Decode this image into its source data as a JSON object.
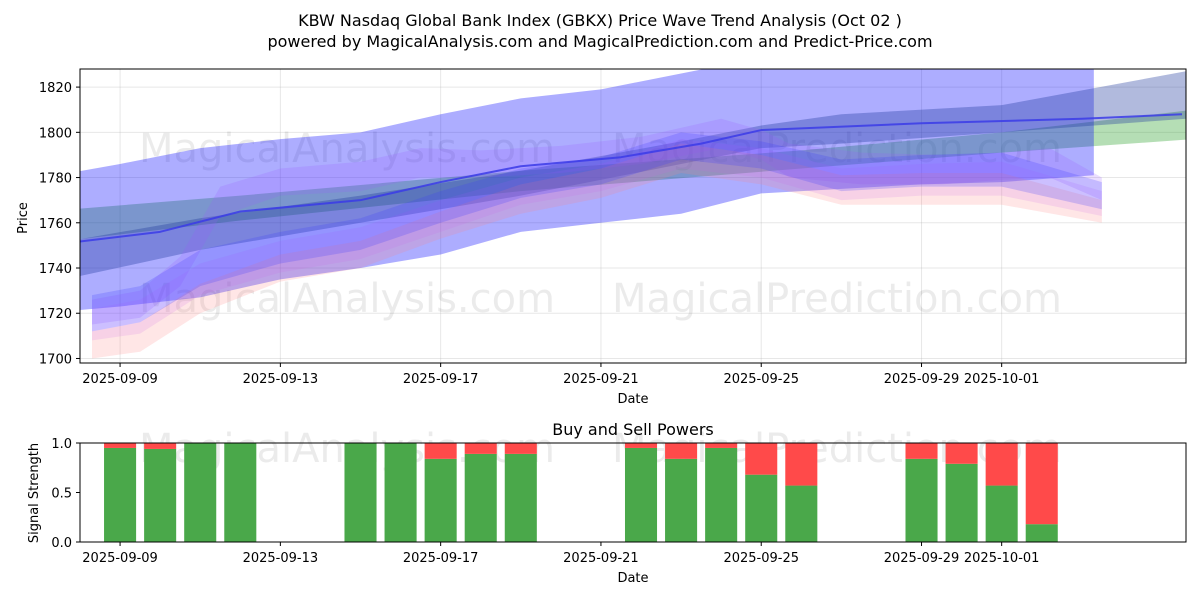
{
  "chart_data": [
    {
      "type": "line",
      "title": "KBW Nasdaq Global Bank Index (GBKX) Price Wave Trend Analysis (Oct 02 )",
      "subtitle": "powered by MagicalAnalysis.com and MagicalPrediction.com and Predict-Price.com",
      "xlabel": "Date",
      "ylabel": "Price",
      "x_day_range": [
        -1.0,
        26.6
      ],
      "ylim": [
        1698,
        1828
      ],
      "x_ticks": [
        {
          "day": 0,
          "label": "2025-09-09"
        },
        {
          "day": 4,
          "label": "2025-09-13"
        },
        {
          "day": 8,
          "label": "2025-09-17"
        },
        {
          "day": 12,
          "label": "2025-09-21"
        },
        {
          "day": 16,
          "label": "2025-09-25"
        },
        {
          "day": 20,
          "label": "2025-09-29"
        },
        {
          "day": 22,
          "label": "2025-10-01"
        }
      ],
      "y_ticks": [
        1700,
        1720,
        1740,
        1760,
        1780,
        1800,
        1820
      ],
      "grid": true,
      "watermarks": [
        "MagicalAnalysis.com",
        "MagicalPrediction.com",
        "MagicalAnalysis.com",
        "MagicalPrediction.com"
      ],
      "series": [
        {
          "name": "green-band",
          "color": "#2ca02c",
          "opacity": 0.35,
          "x": [
            -1.9,
            3,
            10,
            17,
            22,
            26.8
          ],
          "upper": [
            1765,
            1772,
            1783,
            1792,
            1800,
            1810
          ],
          "lower": [
            1751,
            1761,
            1774,
            1784,
            1791,
            1797
          ]
        },
        {
          "name": "wide-band",
          "color": "#0000ff",
          "opacity": 0.32,
          "x": [
            -1.9,
            0,
            2,
            4,
            6,
            8,
            10,
            12,
            14,
            16,
            18,
            20,
            22,
            24.3
          ],
          "upper": [
            1780,
            1786,
            1793,
            1797,
            1800,
            1808,
            1815,
            1819,
            1826,
            1833,
            1835,
            1838,
            1842,
            1846
          ],
          "lower": [
            1720,
            1723,
            1727,
            1735,
            1740,
            1746,
            1756,
            1760,
            1764,
            1773,
            1775,
            1777,
            1778,
            1781
          ]
        },
        {
          "name": "upper-band",
          "color": "#1f3a9f",
          "opacity": 0.35,
          "x": [
            -1.9,
            2,
            6,
            10,
            14,
            16,
            18,
            22,
            26.6
          ],
          "upper": [
            1750,
            1762,
            1772,
            1783,
            1796,
            1803,
            1808,
            1812,
            1827
          ],
          "lower": [
            1733,
            1748,
            1760,
            1772,
            1786,
            1793,
            1795,
            1800,
            1806
          ]
        },
        {
          "name": "purple-wave",
          "color": "#9a5cff",
          "opacity": 0.2,
          "x": [
            -0.7,
            0.5,
            1.5,
            2.5,
            4,
            6,
            7.5,
            9,
            11,
            13,
            15,
            16,
            16.7,
            18.5,
            20.5,
            22,
            23.2,
            24.5
          ],
          "upper": [
            1726,
            1730,
            1745,
            1776,
            1784,
            1787,
            1793,
            1792,
            1794,
            1798,
            1806,
            1801,
            1795,
            1791,
            1790,
            1791,
            1793,
            1780
          ],
          "lower": [
            1715,
            1718,
            1732,
            1763,
            1772,
            1774,
            1780,
            1780,
            1782,
            1786,
            1793,
            1788,
            1780,
            1777,
            1777,
            1779,
            1780,
            1770
          ]
        },
        {
          "name": "magenta-wave",
          "color": "#c060ff",
          "opacity": 0.16,
          "x": [
            -0.7,
            0.5,
            2,
            4,
            6,
            8,
            10,
            12,
            14,
            16,
            18,
            20,
            22,
            24.5
          ],
          "upper": [
            1722,
            1726,
            1742,
            1752,
            1758,
            1770,
            1780,
            1786,
            1797,
            1793,
            1784,
            1786,
            1787,
            1774
          ],
          "lower": [
            1708,
            1711,
            1728,
            1738,
            1744,
            1756,
            1768,
            1774,
            1784,
            1780,
            1770,
            1772,
            1772,
            1763
          ]
        },
        {
          "name": "red-wave",
          "color": "#ff8080",
          "opacity": 0.2,
          "x": [
            -0.7,
            0.5,
            2,
            4,
            6,
            8,
            10,
            12,
            14,
            16,
            18,
            20,
            22,
            24.5
          ],
          "upper": [
            1712,
            1716,
            1733,
            1746,
            1752,
            1765,
            1777,
            1784,
            1795,
            1790,
            1781,
            1782,
            1782,
            1770
          ],
          "lower": [
            1700,
            1703,
            1720,
            1734,
            1740,
            1753,
            1764,
            1771,
            1782,
            1777,
            1768,
            1768,
            1768,
            1760
          ]
        },
        {
          "name": "blue-wave",
          "color": "#3a3aff",
          "opacity": 0.22,
          "x": [
            -0.7,
            0.5,
            2,
            4,
            6,
            8,
            10,
            12,
            14,
            16,
            18,
            20,
            22,
            24.5
          ],
          "upper": [
            1728,
            1732,
            1748,
            1756,
            1762,
            1774,
            1784,
            1789,
            1800,
            1796,
            1788,
            1790,
            1791,
            1778
          ],
          "lower": [
            1712,
            1716,
            1732,
            1742,
            1748,
            1760,
            1771,
            1777,
            1788,
            1784,
            1774,
            1776,
            1776,
            1766
          ]
        },
        {
          "name": "trend-line",
          "color": "#3b3be8",
          "opacity": 0.85,
          "x": [
            -1.8,
            1,
            3,
            6,
            8,
            10,
            12.5,
            14.5,
            16,
            20,
            24,
            26.5
          ],
          "values": [
            1750,
            1756,
            1765,
            1770,
            1778,
            1785,
            1789,
            1795,
            1801,
            1804,
            1806,
            1808
          ]
        }
      ]
    },
    {
      "type": "bar",
      "title": "Buy and Sell Powers",
      "xlabel": "Date",
      "ylabel": "Signal Strength",
      "x_day_range": [
        -1.0,
        26.6
      ],
      "ylim": [
        0,
        1.0
      ],
      "y_ticks": [
        0.0,
        0.5,
        1.0
      ],
      "y_tick_labels": [
        "0.0",
        "0.5",
        "1.0"
      ],
      "x_ticks": [
        {
          "day": 0,
          "label": "2025-09-09"
        },
        {
          "day": 4,
          "label": "2025-09-13"
        },
        {
          "day": 8,
          "label": "2025-09-17"
        },
        {
          "day": 12,
          "label": "2025-09-21"
        },
        {
          "day": 16,
          "label": "2025-09-25"
        },
        {
          "day": 20,
          "label": "2025-09-29"
        },
        {
          "day": 22,
          "label": "2025-10-01"
        }
      ],
      "buy_color": "#4aa84a",
      "sell_color": "#ff4a4a",
      "days": [
        0,
        1,
        2,
        3,
        6,
        7,
        8,
        9,
        10,
        13,
        14,
        15,
        16,
        17,
        20,
        21,
        22,
        23
      ],
      "series": [
        {
          "name": "Buy",
          "values": [
            0.95,
            0.94,
            1.0,
            1.0,
            1.0,
            1.0,
            0.84,
            0.89,
            0.89,
            0.95,
            0.84,
            0.95,
            0.68,
            0.57,
            0.84,
            0.79,
            0.57,
            0.18
          ]
        },
        {
          "name": "Sell",
          "values": [
            0.05,
            0.06,
            0.0,
            0.0,
            0.0,
            0.0,
            0.16,
            0.11,
            0.11,
            0.05,
            0.16,
            0.05,
            0.32,
            0.43,
            0.16,
            0.21,
            0.43,
            0.82
          ]
        }
      ],
      "watermarks": [
        "MagicalAnalysis.com",
        "MagicalPrediction.com"
      ]
    }
  ]
}
